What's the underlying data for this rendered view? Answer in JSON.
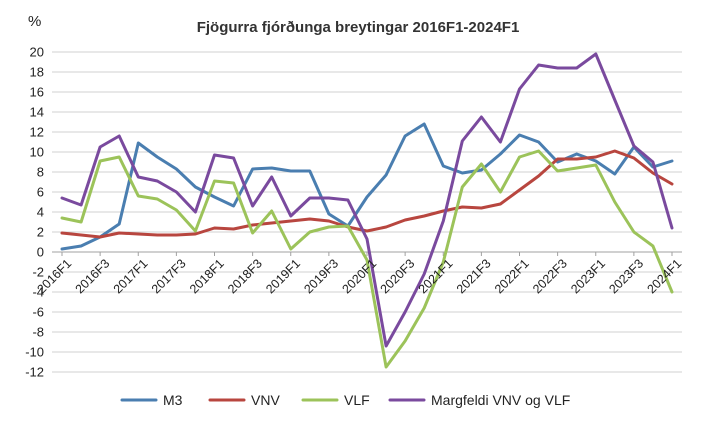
{
  "chart_data": {
    "type": "line",
    "title": "Fjögurra fjórðunga breytingar 2016F1-2024F1",
    "unit_label": "%",
    "ylim": [
      -12,
      20
    ],
    "y_ticks": [
      20,
      18,
      16,
      14,
      12,
      10,
      8,
      6,
      4,
      2,
      0,
      -2,
      -4,
      -6,
      -8,
      -10,
      -12
    ],
    "grid": "horizontal",
    "legend_position": "bottom",
    "x": [
      "2016F1",
      "2016F2",
      "2016F3",
      "2016F4",
      "2017F1",
      "2017F2",
      "2017F3",
      "2017F4",
      "2018F1",
      "2018F2",
      "2018F3",
      "2018F4",
      "2019F1",
      "2019F2",
      "2019F3",
      "2019F4",
      "2020F1",
      "2020F2",
      "2020F3",
      "2020F4",
      "2021F1",
      "2021F2",
      "2021F3",
      "2021F4",
      "2022F1",
      "2022F2",
      "2022F3",
      "2022F4",
      "2023F1",
      "2023F2",
      "2023F3",
      "2023F4",
      "2024F1"
    ],
    "x_tick_labels": [
      "2016F1",
      "2016F3",
      "2017F1",
      "2017F3",
      "2018F1",
      "2018F3",
      "2019F1",
      "2019F3",
      "2020F1",
      "2020F3",
      "2021F1",
      "2021F3",
      "2022F1",
      "2022F3",
      "2023F1",
      "2023F3",
      "2024F1"
    ],
    "series": [
      {
        "name": "M3",
        "color": "#4a7eb0",
        "values": [
          0.3,
          0.6,
          1.5,
          2.8,
          10.9,
          9.5,
          8.3,
          6.5,
          5.5,
          4.6,
          8.3,
          8.4,
          8.1,
          8.1,
          3.8,
          2.6,
          5.5,
          7.7,
          11.6,
          12.8,
          8.6,
          7.9,
          8.2,
          9.8,
          11.7,
          11.0,
          9.0,
          9.8,
          9.1,
          7.8,
          10.5,
          8.5,
          9.1
        ]
      },
      {
        "name": "VNV",
        "color": "#b8463f",
        "values": [
          1.9,
          1.7,
          1.5,
          1.9,
          1.8,
          1.7,
          1.7,
          1.8,
          2.4,
          2.3,
          2.7,
          2.9,
          3.1,
          3.3,
          3.1,
          2.5,
          2.1,
          2.5,
          3.2,
          3.6,
          4.1,
          4.5,
          4.4,
          4.8,
          6.2,
          7.6,
          9.3,
          9.3,
          9.5,
          10.1,
          9.4,
          7.9,
          6.8
        ]
      },
      {
        "name": "VLF",
        "color": "#9cc35a",
        "values": [
          3.4,
          3.0,
          9.1,
          9.5,
          5.6,
          5.3,
          4.2,
          2.1,
          7.1,
          6.9,
          1.9,
          4.1,
          0.3,
          2.0,
          2.5,
          2.6,
          -0.8,
          -11.5,
          -8.9,
          -5.6,
          -1.0,
          6.5,
          8.8,
          6.0,
          9.5,
          10.1,
          8.1,
          8.4,
          8.7,
          5.0,
          2.0,
          0.6,
          -4.0
        ]
      },
      {
        "name": "Margfeldi VNV og VLF",
        "color": "#7a4a9e",
        "values": [
          5.4,
          4.7,
          10.5,
          11.6,
          7.5,
          7.1,
          6.0,
          4.0,
          9.7,
          9.4,
          4.6,
          7.5,
          3.6,
          5.4,
          5.4,
          5.2,
          1.3,
          -9.4,
          -6.0,
          -2.2,
          3.1,
          11.1,
          13.5,
          11.0,
          16.3,
          18.7,
          18.4,
          18.4,
          19.8,
          15.2,
          10.6,
          9.0,
          2.4
        ]
      }
    ]
  }
}
